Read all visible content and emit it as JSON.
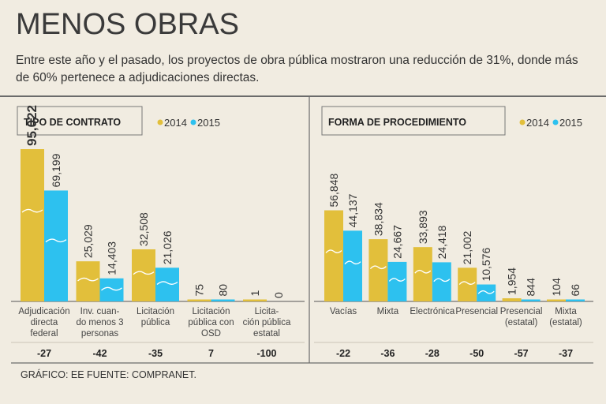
{
  "title": "MENOS OBRAS",
  "subtitle": "Entre este año y el pasado, los proyectos de obra pública mostraron una reducción de 31%, donde más de 60% pertenece a adjudicaciones directas.",
  "footer": "GRÁFICO: EE  FUENTE: COMPRANET.",
  "colors": {
    "y2014": "#e2bf3b",
    "y2015": "#2dc1ef",
    "bg": "#f1ece1",
    "line": "#6b6b6b"
  },
  "chart_data": [
    {
      "type": "bar",
      "title": "TIPO DE CONTRATO",
      "legend": [
        "2014",
        "2015"
      ],
      "categories": [
        [
          "Adjudicación",
          "directa",
          "federal"
        ],
        [
          "Inv. cuan-",
          "do menos 3",
          "personas"
        ],
        [
          "Licitación",
          "pública"
        ],
        [
          "Licitación",
          "pública con",
          "OSD"
        ],
        [
          "Licita-",
          "ción pública",
          "estatal"
        ]
      ],
      "series": [
        {
          "name": "2014",
          "values": [
            95022,
            25029,
            32508,
            75,
            1
          ],
          "labels": [
            "95,022",
            "25,029",
            "32,508",
            "75",
            "1"
          ]
        },
        {
          "name": "2015",
          "values": [
            69199,
            14403,
            21026,
            80,
            0
          ],
          "labels": [
            "69,199",
            "14,403",
            "21,026",
            "80",
            "0"
          ]
        }
      ],
      "changes": [
        "-27",
        "-42",
        "-35",
        "7",
        "-100"
      ],
      "ylim": [
        0,
        95022
      ]
    },
    {
      "type": "bar",
      "title": "FORMA DE PROCEDIMIENTO",
      "legend": [
        "2014",
        "2015"
      ],
      "categories": [
        [
          "Vacías"
        ],
        [
          "Mixta"
        ],
        [
          "Electrónica"
        ],
        [
          "Presencial"
        ],
        [
          "Presencial",
          "(estatal)"
        ],
        [
          "Mixta",
          "(estatal)"
        ]
      ],
      "series": [
        {
          "name": "2014",
          "values": [
            56848,
            38834,
            33893,
            21002,
            1954,
            104
          ],
          "labels": [
            "56,848",
            "38,834",
            "33,893",
            "21,002",
            "1,954",
            "104"
          ]
        },
        {
          "name": "2015",
          "values": [
            44137,
            24667,
            24418,
            10576,
            844,
            66
          ],
          "labels": [
            "44,137",
            "24,667",
            "24,418",
            "10,576",
            "844",
            "66"
          ]
        }
      ],
      "changes": [
        "-22",
        "-36",
        "-28",
        "-50",
        "-57",
        "-37"
      ],
      "ylim": [
        0,
        95022
      ]
    }
  ]
}
